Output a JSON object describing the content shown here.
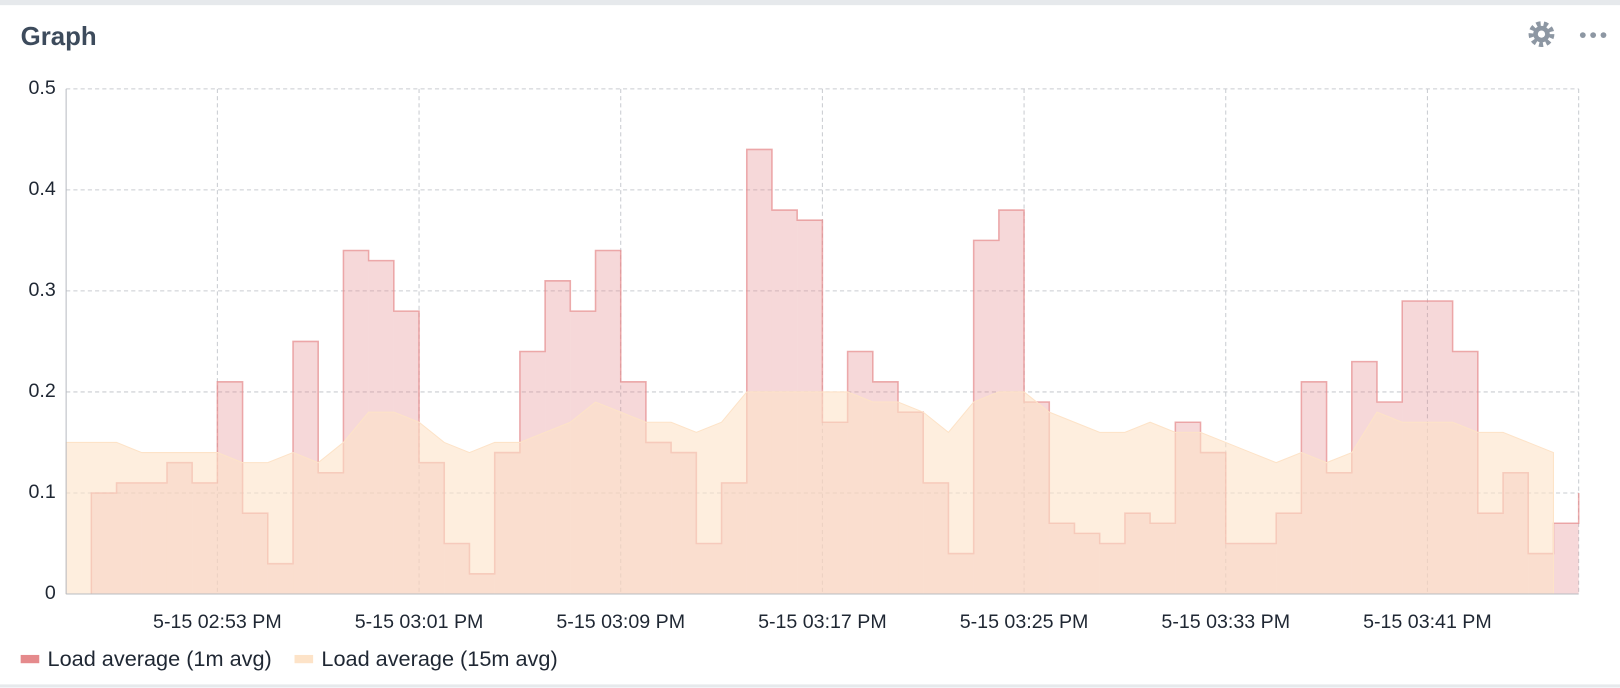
{
  "chart_data": {
    "type": "area",
    "title": "Graph",
    "x": [
      "5-15 02:47 PM",
      "5-15 02:48 PM",
      "5-15 02:49 PM",
      "5-15 02:50 PM",
      "5-15 02:51 PM",
      "5-15 02:52 PM",
      "5-15 02:53 PM",
      "5-15 02:54 PM",
      "5-15 02:55 PM",
      "5-15 02:56 PM",
      "5-15 02:57 PM",
      "5-15 02:58 PM",
      "5-15 02:59 PM",
      "5-15 03:00 PM",
      "5-15 03:01 PM",
      "5-15 03:02 PM",
      "5-15 03:03 PM",
      "5-15 03:04 PM",
      "5-15 03:05 PM",
      "5-15 03:06 PM",
      "5-15 03:07 PM",
      "5-15 03:08 PM",
      "5-15 03:09 PM",
      "5-15 03:10 PM",
      "5-15 03:11 PM",
      "5-15 03:12 PM",
      "5-15 03:13 PM",
      "5-15 03:14 PM",
      "5-15 03:15 PM",
      "5-15 03:16 PM",
      "5-15 03:17 PM",
      "5-15 03:18 PM",
      "5-15 03:19 PM",
      "5-15 03:20 PM",
      "5-15 03:21 PM",
      "5-15 03:22 PM",
      "5-15 03:23 PM",
      "5-15 03:24 PM",
      "5-15 03:25 PM",
      "5-15 03:26 PM",
      "5-15 03:27 PM",
      "5-15 03:28 PM",
      "5-15 03:29 PM",
      "5-15 03:30 PM",
      "5-15 03:31 PM",
      "5-15 03:32 PM",
      "5-15 03:33 PM",
      "5-15 03:34 PM",
      "5-15 03:35 PM",
      "5-15 03:36 PM",
      "5-15 03:37 PM",
      "5-15 03:38 PM",
      "5-15 03:39 PM",
      "5-15 03:40 PM",
      "5-15 03:41 PM",
      "5-15 03:42 PM",
      "5-15 03:43 PM",
      "5-15 03:44 PM",
      "5-15 03:45 PM",
      "5-15 03:46 PM",
      "5-15 03:47 PM"
    ],
    "series": [
      {
        "name": "Load average (1m avg)",
        "color": "#e58a8c",
        "step": true,
        "values": [
          null,
          0.1,
          0.11,
          0.11,
          0.13,
          0.11,
          0.21,
          0.08,
          0.03,
          0.25,
          0.12,
          0.34,
          0.33,
          0.28,
          0.13,
          0.05,
          0.02,
          0.14,
          0.24,
          0.31,
          0.28,
          0.34,
          0.21,
          0.15,
          0.14,
          0.05,
          0.11,
          0.44,
          0.38,
          0.37,
          0.17,
          0.24,
          0.21,
          0.18,
          0.11,
          0.04,
          0.35,
          0.38,
          0.19,
          0.07,
          0.06,
          0.05,
          0.08,
          0.07,
          0.17,
          0.14,
          0.05,
          0.05,
          0.08,
          0.21,
          0.12,
          0.23,
          0.19,
          0.29,
          0.29,
          0.24,
          0.08,
          0.12,
          0.04,
          0.07,
          0.1
        ]
      },
      {
        "name": "Load average (15m avg)",
        "color": "#fde3c8",
        "step": false,
        "values": [
          0.15,
          0.15,
          0.15,
          0.14,
          0.14,
          0.14,
          0.14,
          0.13,
          0.13,
          0.14,
          0.13,
          0.15,
          0.18,
          0.18,
          0.17,
          0.15,
          0.14,
          0.15,
          0.15,
          0.16,
          0.17,
          0.19,
          0.18,
          0.17,
          0.17,
          0.16,
          0.17,
          0.2,
          0.2,
          0.2,
          0.2,
          0.2,
          0.19,
          0.19,
          0.18,
          0.16,
          0.19,
          0.2,
          0.2,
          0.18,
          0.17,
          0.16,
          0.16,
          0.17,
          0.16,
          0.16,
          0.15,
          0.14,
          0.13,
          0.14,
          0.13,
          0.14,
          0.18,
          0.17,
          0.17,
          0.17,
          0.16,
          0.16,
          0.15,
          0.14,
          null
        ]
      }
    ],
    "xlim": [
      "5-15 02:47 PM",
      "5-15 03:47 PM"
    ],
    "xticks": [
      "5-15 02:53 PM",
      "5-15 03:01 PM",
      "5-15 03:09 PM",
      "5-15 03:17 PM",
      "5-15 03:25 PM",
      "5-15 03:33 PM",
      "5-15 03:41 PM"
    ],
    "ylim": [
      0,
      0.5
    ],
    "yticks": [
      0,
      0.1,
      0.2,
      0.3,
      0.4,
      0.5
    ],
    "grid": true,
    "legend": "bottom-left"
  }
}
